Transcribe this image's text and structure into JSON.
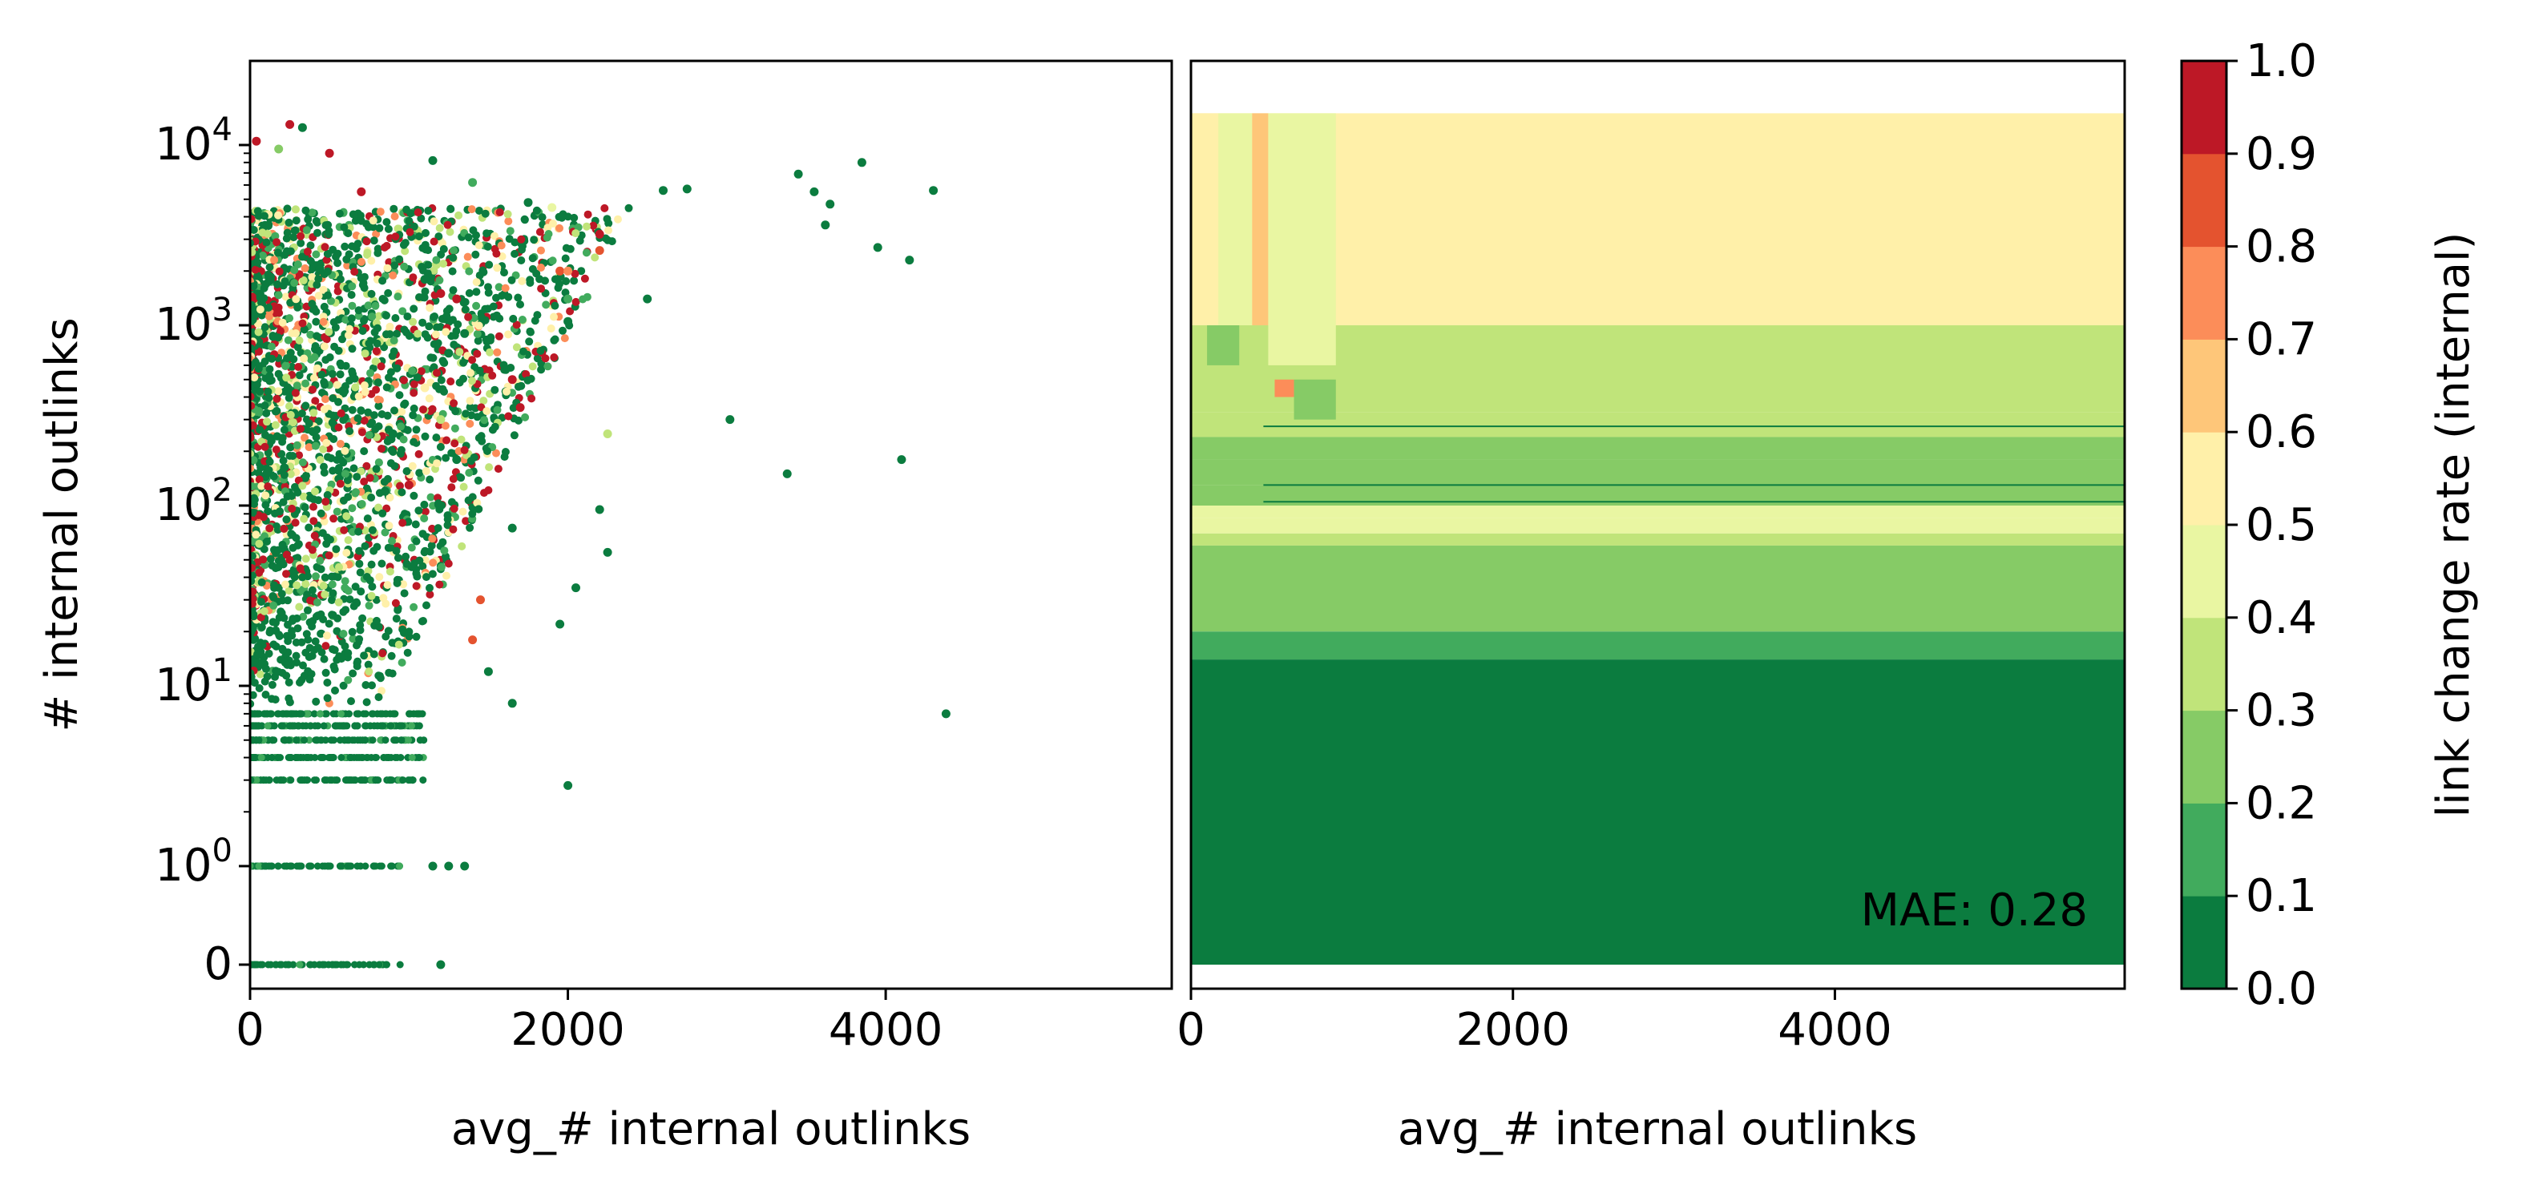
{
  "chart_data": [
    {
      "type": "scatter",
      "xlabel": "avg_# internal outlinks",
      "ylabel": "# internal outlinks",
      "xticks": [
        0,
        2000,
        4000
      ],
      "xlim": [
        0,
        5800
      ],
      "yscale": "symlog",
      "yticks": [
        {
          "base": "0",
          "exp": ""
        },
        {
          "base": "10",
          "exp": "0"
        },
        {
          "base": "10",
          "exp": "1"
        },
        {
          "base": "10",
          "exp": "2"
        },
        {
          "base": "10",
          "exp": "3"
        },
        {
          "base": "10",
          "exp": "4"
        }
      ],
      "ylim": [
        0,
        15000
      ],
      "color_by": "link change rate (internal)",
      "cmap": "RdYlGn_r",
      "points": [
        {
          "x": 250,
          "y": 13000,
          "c": 0.95
        },
        {
          "x": 180,
          "y": 9500,
          "c": 0.2
        },
        {
          "x": 500,
          "y": 9000,
          "c": 0.9
        },
        {
          "x": 40,
          "y": 10500,
          "c": 0.95
        },
        {
          "x": 330,
          "y": 12500,
          "c": 0.05
        },
        {
          "x": 700,
          "y": 5500,
          "c": 0.95
        },
        {
          "x": 1150,
          "y": 8200,
          "c": 0.05
        },
        {
          "x": 1400,
          "y": 6200,
          "c": 0.1
        },
        {
          "x": 1750,
          "y": 4800,
          "c": 0.05
        },
        {
          "x": 2200,
          "y": 3200,
          "c": 0.95
        },
        {
          "x": 2200,
          "y": 2600,
          "c": 0.8
        },
        {
          "x": 1900,
          "y": 4500,
          "c": 0.45
        },
        {
          "x": 1950,
          "y": 2000,
          "c": 0.8
        },
        {
          "x": 2000,
          "y": 2000,
          "c": 0.75
        },
        {
          "x": 2000,
          "y": 1400,
          "c": 0.1
        },
        {
          "x": 2000,
          "y": 1050,
          "c": 0.05
        },
        {
          "x": 2500,
          "y": 1400,
          "c": 0.05
        },
        {
          "x": 2600,
          "y": 5600,
          "c": 0.05
        },
        {
          "x": 2750,
          "y": 5700,
          "c": 0.05
        },
        {
          "x": 3450,
          "y": 6900,
          "c": 0.05
        },
        {
          "x": 3550,
          "y": 5500,
          "c": 0.05
        },
        {
          "x": 3650,
          "y": 4700,
          "c": 0.05
        },
        {
          "x": 3850,
          "y": 8000,
          "c": 0.05
        },
        {
          "x": 3620,
          "y": 3600,
          "c": 0.05
        },
        {
          "x": 3950,
          "y": 2700,
          "c": 0.05
        },
        {
          "x": 4150,
          "y": 2300,
          "c": 0.05
        },
        {
          "x": 4300,
          "y": 5600,
          "c": 0.05
        },
        {
          "x": 3020,
          "y": 300,
          "c": 0.05
        },
        {
          "x": 3380,
          "y": 150,
          "c": 0.05
        },
        {
          "x": 4100,
          "y": 180,
          "c": 0.05
        },
        {
          "x": 4380,
          "y": 7,
          "c": 0.05
        },
        {
          "x": 1650,
          "y": 500,
          "c": 0.95
        },
        {
          "x": 1700,
          "y": 350,
          "c": 0.95
        },
        {
          "x": 2250,
          "y": 250,
          "c": 0.35
        },
        {
          "x": 2200,
          "y": 95,
          "c": 0.05
        },
        {
          "x": 2250,
          "y": 55,
          "c": 0.05
        },
        {
          "x": 2050,
          "y": 35,
          "c": 0.05
        },
        {
          "x": 1950,
          "y": 22,
          "c": 0.05
        },
        {
          "x": 1650,
          "y": 75,
          "c": 0.05
        },
        {
          "x": 1450,
          "y": 30,
          "c": 0.85
        },
        {
          "x": 1400,
          "y": 18,
          "c": 0.85
        },
        {
          "x": 1500,
          "y": 12,
          "c": 0.05
        },
        {
          "x": 1650,
          "y": 8,
          "c": 0.05
        },
        {
          "x": 2000,
          "y": 2.8,
          "c": 0.05
        },
        {
          "x": 1150,
          "y": 1,
          "c": 0.05
        },
        {
          "x": 1250,
          "y": 1,
          "c": 0.05
        },
        {
          "x": 1350,
          "y": 1,
          "c": 0.05
        },
        {
          "x": 1200,
          "y": 0,
          "c": 0.05
        },
        {
          "x": 1300,
          "y": 1400,
          "c": 0.95
        },
        {
          "x": 1200,
          "y": 1500,
          "c": 0.95
        },
        {
          "x": 1100,
          "y": 1800,
          "c": 0.05
        },
        {
          "x": 1350,
          "y": 900,
          "c": 0.05
        },
        {
          "x": 1250,
          "y": 700,
          "c": 0.05
        },
        {
          "x": 1100,
          "y": 450,
          "c": 0.55
        },
        {
          "x": 1200,
          "y": 300,
          "c": 0.3
        },
        {
          "x": 1300,
          "y": 180,
          "c": 0.05
        },
        {
          "x": 1000,
          "y": 130,
          "c": 0.95
        },
        {
          "x": 900,
          "y": 250,
          "c": 0.05
        },
        {
          "x": 850,
          "y": 120,
          "c": 0.05
        }
      ]
    },
    {
      "type": "heatmap",
      "xlabel": "avg_# internal outlinks",
      "xticks": [
        0,
        2000,
        4000
      ],
      "xlim": [
        0,
        5800
      ],
      "annotation": "MAE: 0.28",
      "bands": [
        {
          "y0": 1000,
          "y1": 15000,
          "v": 0.55
        },
        {
          "y0": 330,
          "y1": 1000,
          "v": 0.35
        },
        {
          "y0": 240,
          "y1": 330,
          "v": 0.35
        },
        {
          "y0": 180,
          "y1": 240,
          "v": 0.28
        },
        {
          "y0": 130,
          "y1": 180,
          "v": 0.25
        },
        {
          "y0": 100,
          "y1": 130,
          "v": 0.25
        },
        {
          "y0": 85,
          "y1": 100,
          "v": 0.4
        },
        {
          "y0": 70,
          "y1": 85,
          "v": 0.45
        },
        {
          "y0": 60,
          "y1": 70,
          "v": 0.35
        },
        {
          "y0": 20,
          "y1": 60,
          "v": 0.25
        },
        {
          "y0": 14,
          "y1": 20,
          "v": 0.15
        },
        {
          "y0": 0,
          "y1": 14,
          "v": 0.05
        }
      ]
    },
    {
      "type": "colorbar",
      "label": "link change rate (internal)",
      "ticks": [
        "0.0",
        "0.1",
        "0.2",
        "0.3",
        "0.4",
        "0.5",
        "0.6",
        "0.7",
        "0.8",
        "0.9",
        "1.0"
      ],
      "colors": [
        "#0b7c3f",
        "#41ab5d",
        "#86cb66",
        "#c0e47a",
        "#e9f6a2",
        "#fff0a9",
        "#fec679",
        "#fc8d59",
        "#e4532f",
        "#bd1826"
      ]
    }
  ]
}
